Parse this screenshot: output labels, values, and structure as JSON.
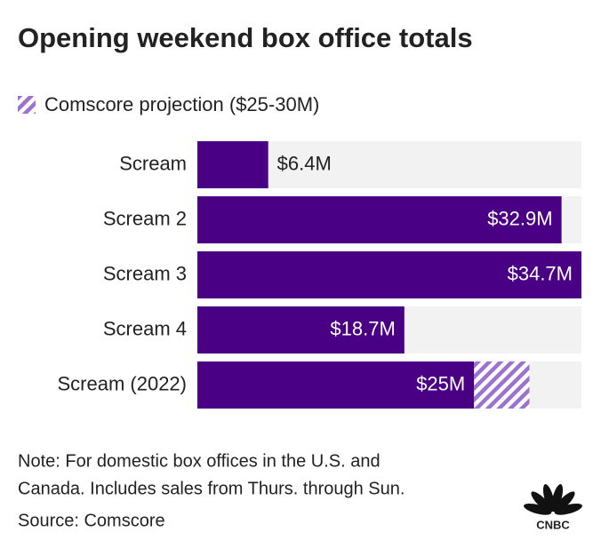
{
  "chart_data": {
    "type": "bar",
    "orientation": "horizontal",
    "title": "Opening weekend box office totals",
    "categories": [
      "Scream",
      "Scream 2",
      "Scream 3",
      "Scream 4",
      "Scream (2022)"
    ],
    "values": [
      6.4,
      32.9,
      34.7,
      18.7,
      25
    ],
    "value_labels": [
      "$6.4M",
      "$32.9M",
      "$34.7M",
      "$18.7M",
      "$25M"
    ],
    "color": "#4a0084",
    "projection": {
      "name": "Comscore projection ($25-30M)",
      "color": "#9b72cf",
      "values": [
        null,
        null,
        null,
        null,
        5
      ]
    },
    "xlim": [
      0,
      34.7
    ],
    "notes": [
      "Note: For domestic box offices in the U.S. and",
      "Canada. Includes sales from Thurs. through Sun."
    ],
    "source": "Source: Comscore",
    "logo": "CNBC"
  }
}
